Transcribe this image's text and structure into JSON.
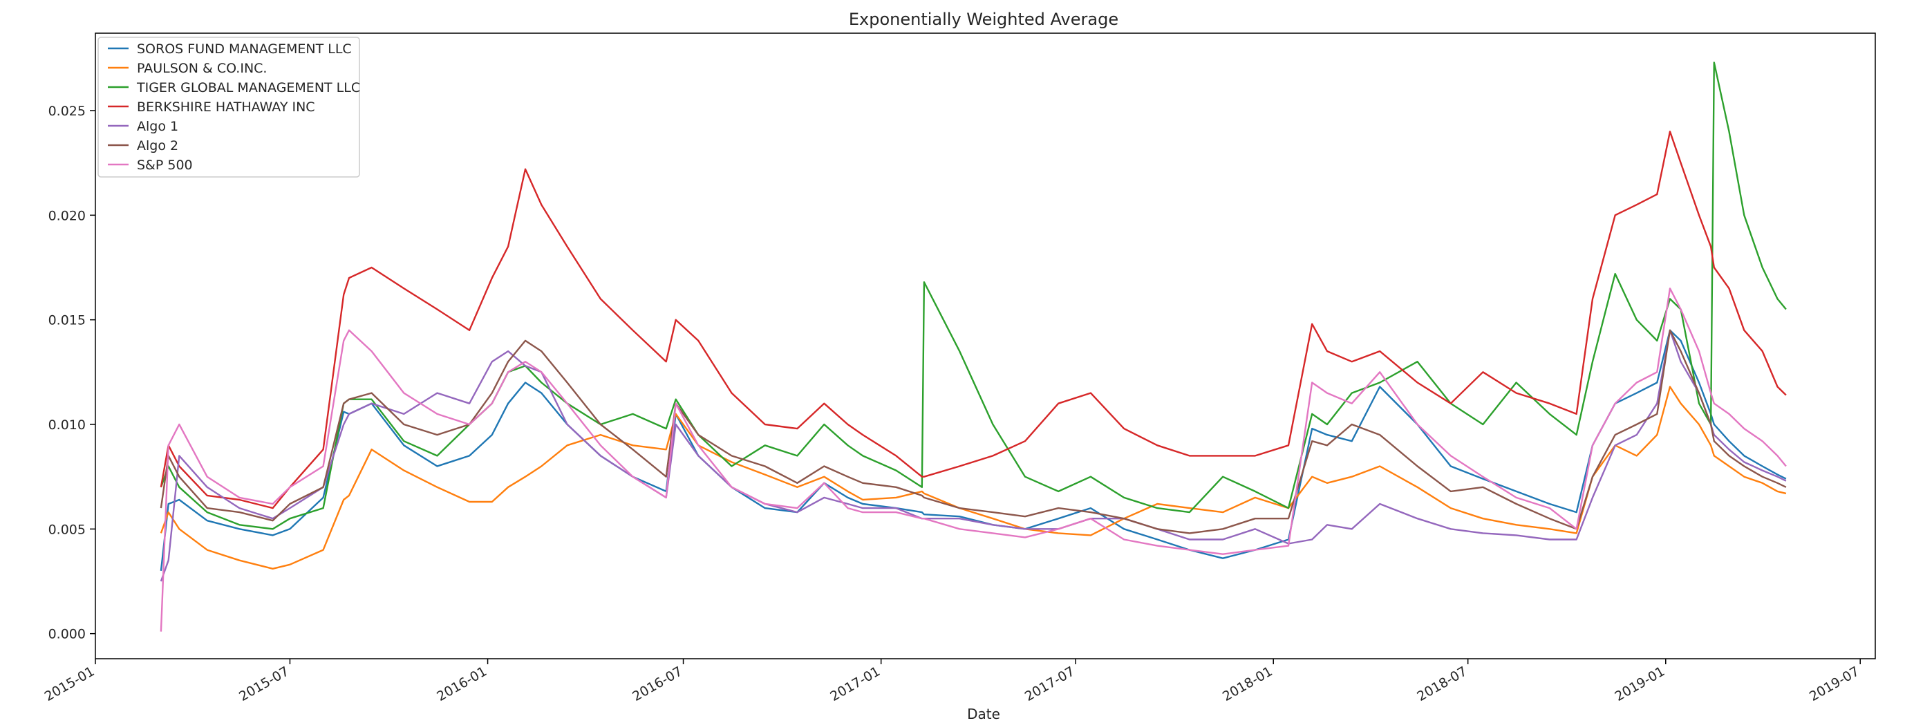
{
  "chart_data": {
    "type": "line",
    "title": "Exponentially Weighted Average",
    "xlabel": "Date",
    "ylabel": "",
    "xlim": [
      "2015-01-01",
      "2019-07-15"
    ],
    "ylim": [
      -0.0012,
      0.0287
    ],
    "grid": false,
    "legend_position": "top-left",
    "x_ticks": [
      "2015-01",
      "2015-07",
      "2016-01",
      "2016-07",
      "2017-01",
      "2017-07",
      "2018-01",
      "2018-07",
      "2019-01",
      "2019-07"
    ],
    "y_ticks": [
      0.0,
      0.005,
      0.01,
      0.015,
      0.02,
      0.025
    ],
    "y_tick_labels": [
      "0.000",
      "0.005",
      "0.010",
      "0.015",
      "0.020",
      "0.025"
    ],
    "x": [
      "2015-03-03",
      "2015-03-10",
      "2015-03-20",
      "2015-04-15",
      "2015-05-15",
      "2015-06-15",
      "2015-07-01",
      "2015-08-01",
      "2015-08-20",
      "2015-08-25",
      "2015-09-15",
      "2015-10-15",
      "2015-11-15",
      "2015-12-15",
      "2016-01-05",
      "2016-01-20",
      "2016-02-05",
      "2016-02-20",
      "2016-03-15",
      "2016-04-15",
      "2016-05-15",
      "2016-06-15",
      "2016-06-24",
      "2016-07-15",
      "2016-08-15",
      "2016-09-15",
      "2016-10-15",
      "2016-11-09",
      "2016-12-01",
      "2016-12-15",
      "2017-01-15",
      "2017-02-08",
      "2017-02-10",
      "2017-03-15",
      "2017-04-15",
      "2017-05-15",
      "2017-06-15",
      "2017-07-15",
      "2017-08-15",
      "2017-09-15",
      "2017-10-15",
      "2017-11-15",
      "2017-12-15",
      "2018-01-15",
      "2018-02-06",
      "2018-02-20",
      "2018-03-15",
      "2018-04-10",
      "2018-05-15",
      "2018-06-15",
      "2018-07-15",
      "2018-08-15",
      "2018-09-15",
      "2018-10-10",
      "2018-10-25",
      "2018-11-15",
      "2018-12-05",
      "2018-12-24",
      "2019-01-05",
      "2019-01-15",
      "2019-02-01",
      "2019-02-12",
      "2019-02-15",
      "2019-03-01",
      "2019-03-15",
      "2019-04-01",
      "2019-04-15",
      "2019-04-23"
    ],
    "series": [
      {
        "name": "SOROS FUND MANAGEMENT LLC",
        "color": "#1f77b4",
        "values": [
          0.003,
          0.0062,
          0.0064,
          0.0054,
          0.005,
          0.0047,
          0.005,
          0.0065,
          0.0106,
          0.0105,
          0.011,
          0.009,
          0.008,
          0.0085,
          0.0095,
          0.011,
          0.012,
          0.0115,
          0.01,
          0.0085,
          0.0075,
          0.0068,
          0.0105,
          0.0085,
          0.007,
          0.006,
          0.0058,
          0.0072,
          0.0065,
          0.0062,
          0.006,
          0.0058,
          0.0057,
          0.0056,
          0.0052,
          0.005,
          0.0055,
          0.006,
          0.005,
          0.0045,
          0.004,
          0.0036,
          0.004,
          0.0045,
          0.0098,
          0.0095,
          0.0092,
          0.0118,
          0.01,
          0.008,
          0.0074,
          0.0068,
          0.0062,
          0.0058,
          0.009,
          0.011,
          0.0115,
          0.012,
          0.0145,
          0.014,
          0.012,
          0.0105,
          0.01,
          0.0092,
          0.0085,
          0.008,
          0.0076,
          0.0074
        ]
      },
      {
        "name": "PAULSON & CO.INC.",
        "color": "#ff7f0e",
        "values": [
          0.0048,
          0.0058,
          0.005,
          0.004,
          0.0035,
          0.0031,
          0.0033,
          0.004,
          0.0064,
          0.0066,
          0.0088,
          0.0078,
          0.007,
          0.0063,
          0.0063,
          0.007,
          0.0075,
          0.008,
          0.009,
          0.0095,
          0.009,
          0.0088,
          0.0105,
          0.009,
          0.0082,
          0.0076,
          0.007,
          0.0075,
          0.0068,
          0.0064,
          0.0065,
          0.0068,
          0.0067,
          0.006,
          0.0055,
          0.005,
          0.0048,
          0.0047,
          0.0055,
          0.0062,
          0.006,
          0.0058,
          0.0065,
          0.006,
          0.0075,
          0.0072,
          0.0075,
          0.008,
          0.007,
          0.006,
          0.0055,
          0.0052,
          0.005,
          0.0048,
          0.0075,
          0.009,
          0.0085,
          0.0095,
          0.0118,
          0.011,
          0.01,
          0.009,
          0.0085,
          0.008,
          0.0075,
          0.0072,
          0.0068,
          0.0067
        ]
      },
      {
        "name": "TIGER GLOBAL MANAGEMENT LLC",
        "color": "#2ca02c",
        "values": [
          0.007,
          0.008,
          0.007,
          0.0058,
          0.0052,
          0.005,
          0.0055,
          0.006,
          0.011,
          0.0112,
          0.0112,
          0.0092,
          0.0085,
          0.01,
          0.011,
          0.0125,
          0.0128,
          0.012,
          0.011,
          0.01,
          0.0105,
          0.0098,
          0.0112,
          0.0095,
          0.008,
          0.009,
          0.0085,
          0.01,
          0.009,
          0.0085,
          0.0078,
          0.007,
          0.0168,
          0.0135,
          0.01,
          0.0075,
          0.0068,
          0.0075,
          0.0065,
          0.006,
          0.0058,
          0.0075,
          0.0068,
          0.006,
          0.0105,
          0.01,
          0.0115,
          0.012,
          0.013,
          0.011,
          0.01,
          0.012,
          0.0105,
          0.0095,
          0.013,
          0.0172,
          0.015,
          0.014,
          0.016,
          0.0155,
          0.011,
          0.01,
          0.0273,
          0.024,
          0.02,
          0.0175,
          0.016,
          0.0155
        ]
      },
      {
        "name": "BERKSHIRE HATHAWAY INC",
        "color": "#d62728",
        "values": [
          0.007,
          0.009,
          0.008,
          0.0066,
          0.0064,
          0.006,
          0.007,
          0.0088,
          0.0162,
          0.017,
          0.0175,
          0.0165,
          0.0155,
          0.0145,
          0.017,
          0.0185,
          0.0222,
          0.0205,
          0.0185,
          0.016,
          0.0145,
          0.013,
          0.015,
          0.014,
          0.0115,
          0.01,
          0.0098,
          0.011,
          0.01,
          0.0095,
          0.0085,
          0.0075,
          0.0075,
          0.008,
          0.0085,
          0.0092,
          0.011,
          0.0115,
          0.0098,
          0.009,
          0.0085,
          0.0085,
          0.0085,
          0.009,
          0.0148,
          0.0135,
          0.013,
          0.0135,
          0.012,
          0.011,
          0.0125,
          0.0115,
          0.011,
          0.0105,
          0.016,
          0.02,
          0.0205,
          0.021,
          0.024,
          0.0225,
          0.02,
          0.0185,
          0.0175,
          0.0165,
          0.0145,
          0.0135,
          0.0118,
          0.0114
        ]
      },
      {
        "name": "Algo 1",
        "color": "#9467bd",
        "values": [
          0.0025,
          0.0035,
          0.0085,
          0.007,
          0.006,
          0.0055,
          0.006,
          0.007,
          0.01,
          0.0105,
          0.011,
          0.0105,
          0.0115,
          0.011,
          0.013,
          0.0135,
          0.0128,
          0.0125,
          0.01,
          0.0085,
          0.0075,
          0.0065,
          0.01,
          0.0085,
          0.007,
          0.0062,
          0.0058,
          0.0065,
          0.0062,
          0.006,
          0.006,
          0.0055,
          0.0055,
          0.0055,
          0.0052,
          0.005,
          0.005,
          0.0055,
          0.0055,
          0.005,
          0.0045,
          0.0045,
          0.005,
          0.0043,
          0.0045,
          0.0052,
          0.005,
          0.0062,
          0.0055,
          0.005,
          0.0048,
          0.0047,
          0.0045,
          0.0045,
          0.0065,
          0.009,
          0.0095,
          0.011,
          0.0145,
          0.013,
          0.0115,
          0.01,
          0.0095,
          0.0088,
          0.0082,
          0.0078,
          0.0075,
          0.0073
        ]
      },
      {
        "name": "Algo 2",
        "color": "#8c564b",
        "values": [
          0.006,
          0.0085,
          0.0075,
          0.006,
          0.0058,
          0.0054,
          0.0062,
          0.007,
          0.011,
          0.0112,
          0.0115,
          0.01,
          0.0095,
          0.01,
          0.0115,
          0.013,
          0.014,
          0.0135,
          0.012,
          0.01,
          0.0088,
          0.0075,
          0.011,
          0.0095,
          0.0085,
          0.008,
          0.0072,
          0.008,
          0.0075,
          0.0072,
          0.007,
          0.0066,
          0.0065,
          0.006,
          0.0058,
          0.0056,
          0.006,
          0.0058,
          0.0055,
          0.005,
          0.0048,
          0.005,
          0.0055,
          0.0055,
          0.0092,
          0.009,
          0.01,
          0.0095,
          0.008,
          0.0068,
          0.007,
          0.0062,
          0.0055,
          0.005,
          0.0075,
          0.0095,
          0.01,
          0.0105,
          0.0145,
          0.0135,
          0.0115,
          0.01,
          0.0092,
          0.0085,
          0.008,
          0.0075,
          0.0072,
          0.007
        ]
      },
      {
        "name": "S&P 500",
        "color": "#e377c2",
        "values": [
          0.0001,
          0.009,
          0.01,
          0.0075,
          0.0065,
          0.0062,
          0.007,
          0.008,
          0.014,
          0.0145,
          0.0135,
          0.0115,
          0.0105,
          0.01,
          0.011,
          0.0125,
          0.013,
          0.0125,
          0.011,
          0.009,
          0.0075,
          0.0065,
          0.011,
          0.009,
          0.007,
          0.0062,
          0.006,
          0.0072,
          0.006,
          0.0058,
          0.0058,
          0.0055,
          0.0055,
          0.005,
          0.0048,
          0.0046,
          0.005,
          0.0055,
          0.0045,
          0.0042,
          0.004,
          0.0038,
          0.004,
          0.0042,
          0.012,
          0.0115,
          0.011,
          0.0125,
          0.01,
          0.0085,
          0.0075,
          0.0065,
          0.006,
          0.005,
          0.009,
          0.011,
          0.012,
          0.0125,
          0.0165,
          0.0155,
          0.0135,
          0.0115,
          0.011,
          0.0105,
          0.0098,
          0.0092,
          0.0085,
          0.008
        ]
      }
    ]
  }
}
